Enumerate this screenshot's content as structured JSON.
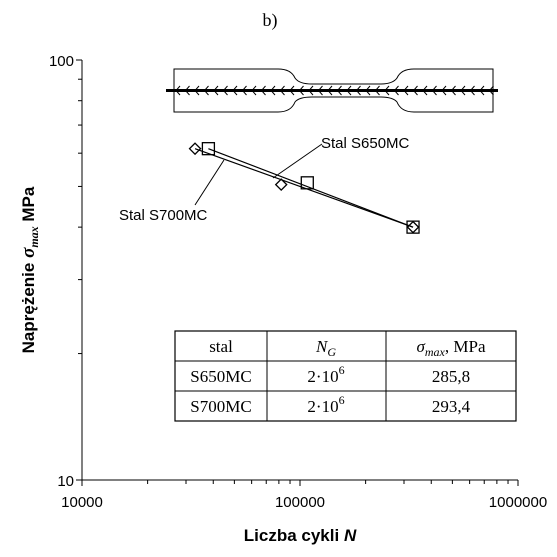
{
  "chart_data": {
    "type": "scatter",
    "panel_label": "b)",
    "xscale": "log",
    "yscale": "log",
    "xlim": [
      10000,
      1000000
    ],
    "ylim": [
      10,
      100
    ],
    "xticks": [
      "10000",
      "100000",
      "1000000"
    ],
    "yticks": [
      "100",
      "10"
    ],
    "xlabel": {
      "text": "Liczba cykli ",
      "var": "N"
    },
    "ylabel": {
      "pre": "Naprężenie ",
      "sym": "σ",
      "sub": "max",
      "post": " MPa"
    },
    "series": [
      {
        "name": "Stal S650MC",
        "marker": "diamond",
        "points": [
          {
            "x": 33000,
            "y": 61.5
          },
          {
            "x": 82000,
            "y": 50.5
          },
          {
            "x": 330000,
            "y": 40.0
          }
        ],
        "fit": [
          [
            33000,
            61.5
          ],
          [
            330000,
            40.0
          ]
        ]
      },
      {
        "name": "Stal S700MC",
        "marker": "square",
        "points": [
          {
            "x": 38000,
            "y": 61.5
          },
          {
            "x": 108000,
            "y": 51.0
          },
          {
            "x": 330000,
            "y": 40.0
          }
        ],
        "fit": [
          [
            38000,
            61.5
          ],
          [
            330000,
            40.0
          ]
        ]
      }
    ],
    "table": {
      "headers": [
        {
          "text": "stal"
        },
        {
          "sym": "N",
          "sub": "G"
        },
        {
          "sym": "σ",
          "sub": "max",
          "post": ", MPa"
        }
      ],
      "rows": [
        {
          "steel": "S650MC",
          "ng_base": "2·10",
          "ng_exp": "6",
          "sigma": "285,8"
        },
        {
          "steel": "S700MC",
          "ng_base": "2·10",
          "ng_exp": "6",
          "sigma": "293,4"
        }
      ]
    }
  }
}
